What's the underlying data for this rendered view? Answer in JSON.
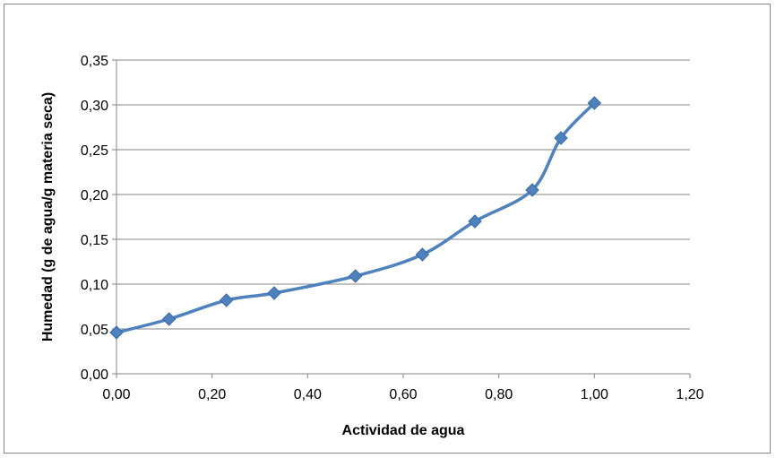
{
  "chart_data": {
    "type": "scatter",
    "xlabel": "Actividad de agua",
    "ylabel": "Humedad (g de agua/g materia seca)",
    "xlim": [
      0,
      1.2
    ],
    "ylim": [
      0,
      0.35
    ],
    "x_ticks": [
      "0,00",
      "0,20",
      "0,40",
      "0,60",
      "0,80",
      "1,00",
      "1,20"
    ],
    "y_ticks": [
      "0,00",
      "0,05",
      "0,10",
      "0,15",
      "0,20",
      "0,25",
      "0,30",
      "0,35"
    ],
    "x_tick_values": [
      0,
      0.2,
      0.4,
      0.6,
      0.8,
      1.0,
      1.2
    ],
    "y_tick_values": [
      0,
      0.05,
      0.1,
      0.15,
      0.2,
      0.25,
      0.3,
      0.35
    ],
    "grid": "horizontal",
    "legend": "none",
    "series": [
      {
        "x": [
          0.0,
          0.11,
          0.23,
          0.33,
          0.5,
          0.64,
          0.75,
          0.87,
          0.93,
          1.0
        ],
        "y": [
          0.046,
          0.061,
          0.082,
          0.09,
          0.109,
          0.133,
          0.17,
          0.205,
          0.263,
          0.302
        ],
        "color": "#4F81BD",
        "marker": "diamond",
        "trendline": "smooth"
      }
    ]
  }
}
